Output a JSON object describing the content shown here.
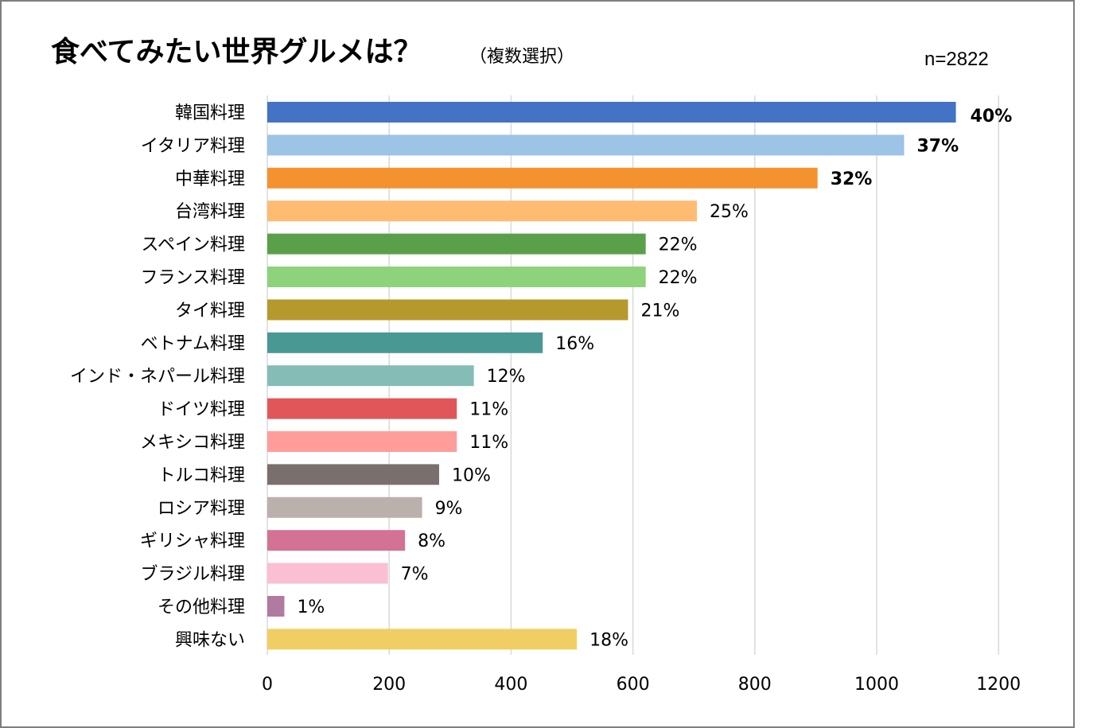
{
  "chart_data": {
    "type": "bar",
    "orientation": "horizontal",
    "title": "食べてみたい世界グルメは？",
    "subtitle": "（複数選択）",
    "sample_size": "n=2822",
    "xlim": [
      0,
      1200
    ],
    "x_ticks": [
      "0",
      "200",
      "400",
      "600",
      "800",
      "1000",
      "1200"
    ],
    "grid": "vertical",
    "categories": [
      "韓国料理",
      "イタリア料理",
      "中華料理",
      "台湾料理",
      "スペイン料理",
      "フランス料理",
      "タイ料理",
      "ベトナム料理",
      "インド・ネパール料理",
      "ドイツ料理",
      "メキシコ料理",
      "トルコ料理",
      "ロシア料理",
      "ギリシャ料理",
      "ブラジル料理",
      "その他料理",
      "興味ない"
    ],
    "values": [
      1130,
      1045,
      903,
      705,
      621,
      621,
      592,
      452,
      339,
      311,
      311,
      282,
      254,
      226,
      198,
      28,
      508
    ],
    "data_labels": [
      "40%",
      "37%",
      "32%",
      "25%",
      "22%",
      "22%",
      "21%",
      "16%",
      "12%",
      "11%",
      "11%",
      "10%",
      "9%",
      "8%",
      "7%",
      "1%",
      "18%"
    ],
    "colors": [
      "#4472c4",
      "#9dc3e6",
      "#f4922f",
      "#ffbb72",
      "#5aa04a",
      "#8ed27c",
      "#b6992d",
      "#499894",
      "#86bcb6",
      "#e15759",
      "#ff9d9a",
      "#79706e",
      "#bab0ac",
      "#d37295",
      "#fabfd2",
      "#b07aa1",
      "#f1ce63"
    ],
    "label_emphasis": [
      "highlight",
      "bold",
      "bold",
      "normal",
      "normal",
      "normal",
      "normal",
      "normal",
      "normal",
      "normal",
      "normal",
      "normal",
      "normal",
      "normal",
      "normal",
      "normal",
      "normal"
    ],
    "highlight_color": "#ff0000"
  }
}
